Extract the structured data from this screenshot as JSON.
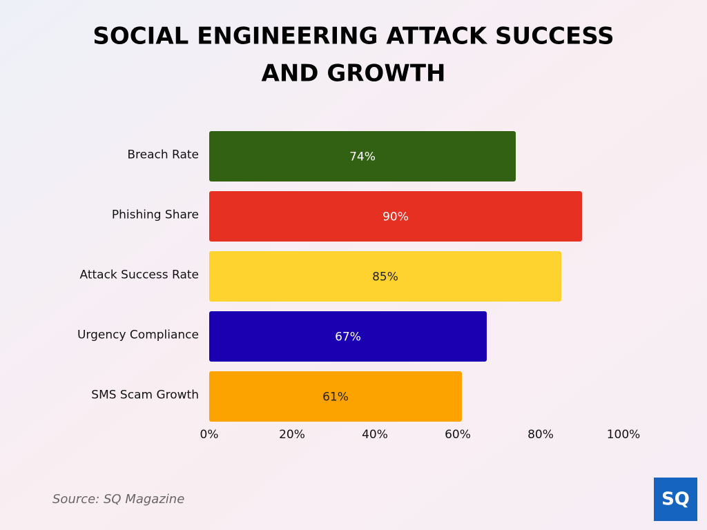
{
  "chart_data": {
    "type": "bar",
    "orientation": "horizontal",
    "title": [
      "SOCIAL ENGINEERING ATTACK SUCCESS",
      "AND GROWTH"
    ],
    "categories": [
      "Breach Rate",
      "Phishing Share",
      "Attack Success Rate",
      "Urgency Compliance",
      "SMS Scam Growth"
    ],
    "values": [
      74,
      90,
      85,
      67,
      61
    ],
    "value_labels": [
      "74%",
      "90%",
      "85%",
      "67%",
      "61%"
    ],
    "colors": [
      "#336114",
      "#e63022",
      "#fed330",
      "#1a00b0",
      "#fca300"
    ],
    "xlim": [
      0,
      100
    ],
    "xticks": [
      {
        "value": 0,
        "label": "0%"
      },
      {
        "value": 20,
        "label": "20%"
      },
      {
        "value": 40,
        "label": "40%"
      },
      {
        "value": 60,
        "label": "60%"
      },
      {
        "value": 80,
        "label": "80%"
      },
      {
        "value": 100,
        "label": "100%"
      }
    ],
    "grid": false
  },
  "source": "Source: SQ Magazine",
  "logo": "SQ"
}
